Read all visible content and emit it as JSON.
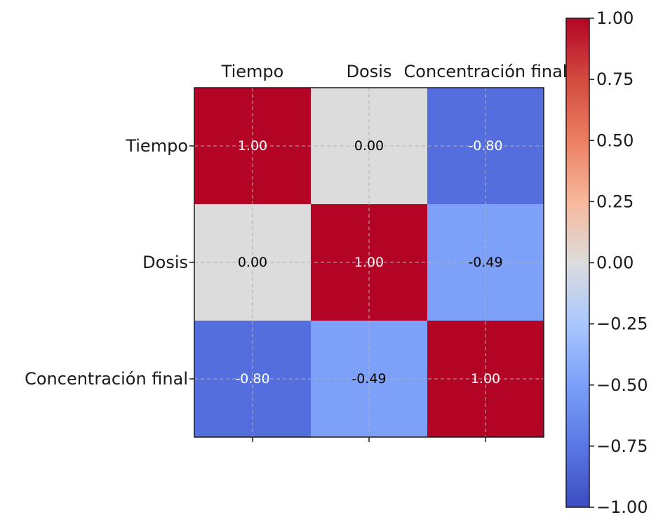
{
  "chart_data": {
    "type": "heatmap",
    "title": "",
    "xlabel": "",
    "ylabel": "",
    "x_labels": [
      "Tiempo",
      "Dosis",
      "Concentración final"
    ],
    "y_labels": [
      "Tiempo",
      "Dosis",
      "Concentración final"
    ],
    "values": [
      [
        1.0,
        0.0,
        -0.8
      ],
      [
        0.0,
        1.0,
        -0.49
      ],
      [
        -0.8,
        -0.49,
        1.0
      ]
    ],
    "value_labels": [
      [
        "1.00",
        "0.00",
        "-0.80"
      ],
      [
        "0.00",
        "1.00",
        "-0.49"
      ],
      [
        "-0.80",
        "-0.49",
        "1.00"
      ]
    ],
    "x_tick_position": "top",
    "grid": true,
    "colormap": "coolwarm",
    "colorbar": {
      "range": [
        -1.0,
        1.0
      ],
      "ticks": [
        1.0,
        0.75,
        0.5,
        0.25,
        0.0,
        -0.25,
        -0.5,
        -0.75,
        -1.0
      ],
      "tick_labels": [
        "1.00",
        "0.75",
        "0.50",
        "0.25",
        "0.00",
        "−0.25",
        "−0.50",
        "−0.75",
        "−1.00"
      ],
      "placement": "right"
    },
    "colors": {
      "high": "#b40426",
      "mid": "#dddcdc",
      "low": "#3b4cc0",
      "text_dark": "#000000",
      "text_light": "#ffffff"
    }
  }
}
